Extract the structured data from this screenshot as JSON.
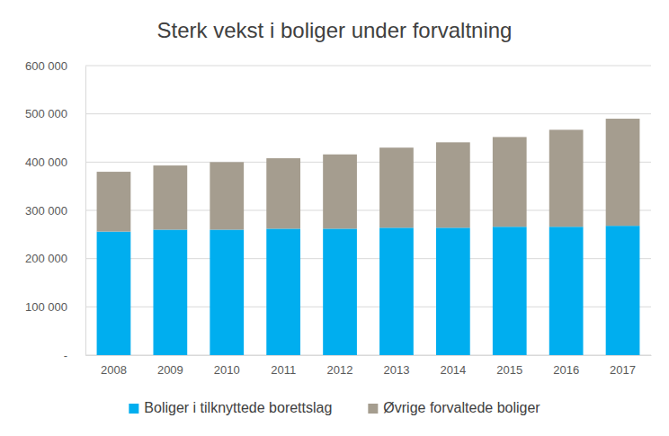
{
  "chart_data": {
    "type": "bar",
    "title": "Sterk vekst i boliger under forvaltning",
    "categories": [
      "2008",
      "2009",
      "2010",
      "2011",
      "2012",
      "2013",
      "2014",
      "2015",
      "2016",
      "2017"
    ],
    "series": [
      {
        "name": "Boliger i tilknyttede borettslag",
        "color": "#00aeef",
        "values": [
          256000,
          260000,
          260000,
          262000,
          262000,
          264000,
          264000,
          266000,
          266000,
          268000
        ]
      },
      {
        "name": "Øvrige forvaltede boliger",
        "color": "#a59d8f",
        "values": [
          124000,
          133000,
          140000,
          146000,
          154000,
          166000,
          177000,
          186000,
          201000,
          222000
        ]
      }
    ],
    "stacked": true,
    "ylim": [
      0,
      600000
    ],
    "yticks": [
      {
        "value": 0,
        "label": "-"
      },
      {
        "value": 100000,
        "label": "100 000"
      },
      {
        "value": 200000,
        "label": "200 000"
      },
      {
        "value": 300000,
        "label": "300 000"
      },
      {
        "value": 400000,
        "label": "400 000"
      },
      {
        "value": 500000,
        "label": "500 000"
      },
      {
        "value": 600000,
        "label": "600 000"
      }
    ],
    "grid": true,
    "legend": "bottom"
  }
}
